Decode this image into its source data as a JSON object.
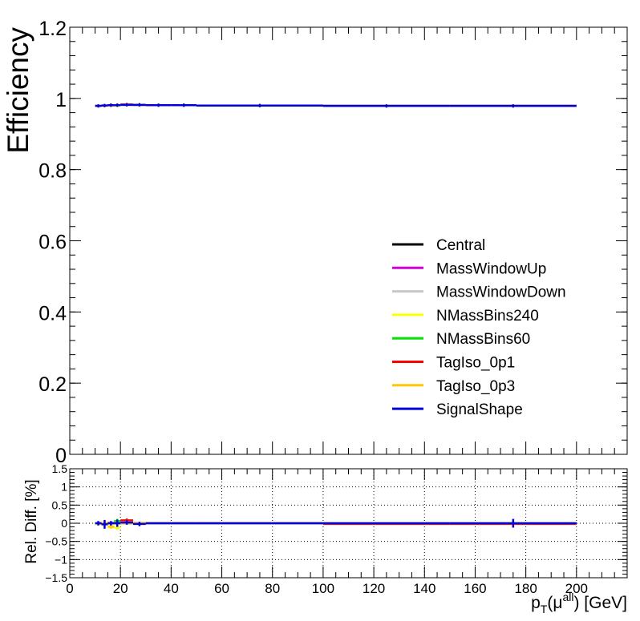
{
  "chart_data": [
    {
      "type": "line",
      "panel": "top",
      "ylabel": "Efficiency",
      "xlabel": "",
      "xlim": [
        0,
        220
      ],
      "ylim": [
        0,
        1.2
      ],
      "yticks": [
        {
          "value": 0,
          "label": "0"
        },
        {
          "value": 0.2,
          "label": "0.2"
        },
        {
          "value": 0.4,
          "label": "0.4"
        },
        {
          "value": 0.6,
          "label": "0.6"
        },
        {
          "value": 0.8,
          "label": "0.8"
        },
        {
          "value": 1,
          "label": "1"
        },
        {
          "value": 1.2,
          "label": "1.2"
        }
      ],
      "legend_position": "center-right",
      "series": [
        {
          "name": "Central",
          "color": "#000000",
          "bins": [
            [
              10,
              12.5,
              0.979
            ],
            [
              12.5,
              15,
              0.98
            ],
            [
              15,
              17.5,
              0.981
            ],
            [
              17.5,
              20,
              0.981
            ],
            [
              20,
              25,
              0.982
            ],
            [
              25,
              30,
              0.982
            ],
            [
              30,
              40,
              0.981
            ],
            [
              40,
              50,
              0.981
            ],
            [
              50,
              100,
              0.98
            ],
            [
              100,
              150,
              0.979
            ],
            [
              150,
              200,
              0.979
            ]
          ]
        },
        {
          "name": "MassWindowUp",
          "color": "#d400d4",
          "bins": [
            [
              10,
              12.5,
              0.979
            ],
            [
              12.5,
              15,
              0.98
            ],
            [
              15,
              17.5,
              0.981
            ],
            [
              17.5,
              20,
              0.981
            ],
            [
              20,
              25,
              0.982
            ],
            [
              25,
              30,
              0.982
            ],
            [
              30,
              40,
              0.981
            ],
            [
              40,
              50,
              0.981
            ],
            [
              50,
              100,
              0.98
            ],
            [
              100,
              150,
              0.979
            ],
            [
              150,
              200,
              0.979
            ]
          ]
        },
        {
          "name": "MassWindowDown",
          "color": "#c8c8c8",
          "bins": [
            [
              10,
              12.5,
              0.979
            ],
            [
              12.5,
              15,
              0.98
            ],
            [
              15,
              17.5,
              0.981
            ],
            [
              17.5,
              20,
              0.981
            ],
            [
              20,
              25,
              0.982
            ],
            [
              25,
              30,
              0.982
            ],
            [
              30,
              40,
              0.981
            ],
            [
              40,
              50,
              0.981
            ],
            [
              50,
              100,
              0.98
            ],
            [
              100,
              150,
              0.979
            ],
            [
              150,
              200,
              0.979
            ]
          ]
        },
        {
          "name": "NMassBins240",
          "color": "#ffff00",
          "bins": [
            [
              10,
              12.5,
              0.979
            ],
            [
              12.5,
              15,
              0.98
            ],
            [
              15,
              17.5,
              0.981
            ],
            [
              17.5,
              20,
              0.98
            ],
            [
              20,
              25,
              0.982
            ],
            [
              25,
              30,
              0.982
            ],
            [
              30,
              40,
              0.981
            ],
            [
              40,
              50,
              0.981
            ],
            [
              50,
              100,
              0.98
            ],
            [
              100,
              150,
              0.979
            ],
            [
              150,
              200,
              0.979
            ]
          ]
        },
        {
          "name": "NMassBins60",
          "color": "#00e600",
          "bins": [
            [
              10,
              12.5,
              0.979
            ],
            [
              12.5,
              15,
              0.98
            ],
            [
              15,
              17.5,
              0.981
            ],
            [
              17.5,
              20,
              0.981
            ],
            [
              20,
              25,
              0.982
            ],
            [
              25,
              30,
              0.982
            ],
            [
              30,
              40,
              0.981
            ],
            [
              40,
              50,
              0.981
            ],
            [
              50,
              100,
              0.98
            ],
            [
              100,
              150,
              0.979
            ],
            [
              150,
              200,
              0.979
            ]
          ]
        },
        {
          "name": "TagIso_0p1",
          "color": "#ff0000",
          "bins": [
            [
              10,
              12.5,
              0.979
            ],
            [
              12.5,
              15,
              0.98
            ],
            [
              15,
              17.5,
              0.981
            ],
            [
              17.5,
              20,
              0.981
            ],
            [
              20,
              25,
              0.983
            ],
            [
              25,
              30,
              0.982
            ],
            [
              30,
              40,
              0.981
            ],
            [
              40,
              50,
              0.981
            ],
            [
              50,
              100,
              0.98
            ],
            [
              100,
              150,
              0.979
            ],
            [
              150,
              200,
              0.979
            ]
          ]
        },
        {
          "name": "TagIso_0p3",
          "color": "#ffc800",
          "bins": [
            [
              10,
              12.5,
              0.979
            ],
            [
              12.5,
              15,
              0.98
            ],
            [
              15,
              17.5,
              0.98
            ],
            [
              17.5,
              20,
              0.981
            ],
            [
              20,
              25,
              0.982
            ],
            [
              25,
              30,
              0.982
            ],
            [
              30,
              40,
              0.981
            ],
            [
              40,
              50,
              0.981
            ],
            [
              50,
              100,
              0.98
            ],
            [
              100,
              150,
              0.979
            ],
            [
              150,
              200,
              0.979
            ]
          ]
        },
        {
          "name": "SignalShape",
          "color": "#0000dd",
          "bins": [
            [
              10,
              12.5,
              0.979
            ],
            [
              12.5,
              15,
              0.98
            ],
            [
              15,
              17.5,
              0.981
            ],
            [
              17.5,
              20,
              0.981
            ],
            [
              20,
              25,
              0.982
            ],
            [
              25,
              30,
              0.982
            ],
            [
              30,
              40,
              0.981
            ],
            [
              40,
              50,
              0.981
            ],
            [
              50,
              100,
              0.98
            ],
            [
              100,
              150,
              0.979
            ],
            [
              150,
              200,
              0.979
            ]
          ]
        }
      ]
    },
    {
      "type": "line",
      "panel": "bottom",
      "ylabel": "Rel. Diff. [%]",
      "xlabel_main": "p",
      "xlabel_sub": "T",
      "xlabel_paren_open": "(μ",
      "xlabel_sup": "all",
      "xlabel_rest": ") [GeV]",
      "xlim": [
        0,
        220
      ],
      "ylim": [
        -1.5,
        1.5
      ],
      "grid": true,
      "xticks": [
        {
          "value": 0,
          "label": "0"
        },
        {
          "value": 20,
          "label": "20"
        },
        {
          "value": 40,
          "label": "40"
        },
        {
          "value": 60,
          "label": "60"
        },
        {
          "value": 80,
          "label": "80"
        },
        {
          "value": 100,
          "label": "100"
        },
        {
          "value": 120,
          "label": "120"
        },
        {
          "value": 140,
          "label": "140"
        },
        {
          "value": 160,
          "label": "160"
        },
        {
          "value": 180,
          "label": "180"
        },
        {
          "value": 200,
          "label": "200"
        }
      ],
      "yticks": [
        {
          "value": -1.5,
          "label": "−1.5"
        },
        {
          "value": -1,
          "label": "−1"
        },
        {
          "value": -0.5,
          "label": "−0.5"
        },
        {
          "value": 0,
          "label": "0"
        },
        {
          "value": 0.5,
          "label": "0.5"
        },
        {
          "value": 1,
          "label": "1"
        },
        {
          "value": 1.5,
          "label": "1.5"
        }
      ],
      "series": [
        {
          "name": "MassWindowUp",
          "color": "#d400d4",
          "bins": [
            [
              10,
              12.5,
              0.0
            ],
            [
              12.5,
              15,
              -0.02
            ],
            [
              15,
              17.5,
              0.01
            ],
            [
              17.5,
              20,
              0.0
            ],
            [
              20,
              25,
              0.0
            ],
            [
              25,
              30,
              0.0
            ],
            [
              30,
              40,
              0.0
            ],
            [
              40,
              50,
              0.0
            ],
            [
              50,
              100,
              0.0
            ],
            [
              100,
              150,
              0.0
            ],
            [
              150,
              200,
              0.0
            ]
          ],
          "errors": [
            0.02,
            0.04,
            0.04,
            0.04,
            0.02,
            0.02,
            0.01,
            0.01,
            0.01,
            0.01,
            0.01
          ]
        },
        {
          "name": "MassWindowDown",
          "color": "#c8c8c8",
          "bins": [
            [
              10,
              12.5,
              0.0
            ],
            [
              12.5,
              15,
              0.0
            ],
            [
              15,
              17.5,
              0.0
            ],
            [
              17.5,
              20,
              0.0
            ],
            [
              20,
              25,
              0.0
            ],
            [
              25,
              30,
              0.0
            ],
            [
              30,
              40,
              0.0
            ],
            [
              40,
              50,
              0.0
            ],
            [
              50,
              100,
              0.0
            ],
            [
              100,
              150,
              0.0
            ],
            [
              150,
              200,
              0.0
            ]
          ],
          "errors": [
            0.02,
            0.03,
            0.03,
            0.03,
            0.02,
            0.02,
            0.01,
            0.01,
            0.01,
            0.01,
            0.01
          ]
        },
        {
          "name": "NMassBins240",
          "color": "#ffff00",
          "bins": [
            [
              10,
              12.5,
              -0.02
            ],
            [
              12.5,
              15,
              0.0
            ],
            [
              15,
              17.5,
              -0.08
            ],
            [
              17.5,
              20,
              -0.12
            ],
            [
              20,
              25,
              0.0
            ],
            [
              25,
              30,
              0.0
            ],
            [
              30,
              40,
              0.0
            ],
            [
              40,
              50,
              0.0
            ],
            [
              50,
              100,
              0.0
            ],
            [
              100,
              150,
              0.0
            ],
            [
              150,
              200,
              0.0
            ]
          ],
          "errors": [
            0.04,
            0.05,
            0.06,
            0.06,
            0.03,
            0.02,
            0.01,
            0.01,
            0.01,
            0.01,
            0.01
          ]
        },
        {
          "name": "NMassBins60",
          "color": "#00e600",
          "bins": [
            [
              10,
              12.5,
              0.0
            ],
            [
              12.5,
              15,
              0.0
            ],
            [
              15,
              17.5,
              0.0
            ],
            [
              17.5,
              20,
              0.06
            ],
            [
              20,
              25,
              0.0
            ],
            [
              25,
              30,
              0.0
            ],
            [
              30,
              40,
              0.0
            ],
            [
              40,
              50,
              0.0
            ],
            [
              50,
              100,
              0.0
            ],
            [
              100,
              150,
              0.0
            ],
            [
              150,
              200,
              0.0
            ]
          ],
          "errors": [
            0.03,
            0.04,
            0.04,
            0.06,
            0.02,
            0.02,
            0.01,
            0.01,
            0.01,
            0.01,
            0.01
          ]
        },
        {
          "name": "TagIso_0p1",
          "color": "#ff0000",
          "bins": [
            [
              10,
              12.5,
              0.0
            ],
            [
              12.5,
              15,
              0.0
            ],
            [
              15,
              17.5,
              0.0
            ],
            [
              17.5,
              20,
              0.0
            ],
            [
              20,
              25,
              0.08
            ],
            [
              25,
              30,
              0.0
            ],
            [
              30,
              40,
              0.0
            ],
            [
              40,
              50,
              0.0
            ],
            [
              50,
              100,
              0.0
            ],
            [
              100,
              150,
              -0.02
            ],
            [
              150,
              200,
              -0.02
            ]
          ],
          "errors": [
            0.03,
            0.04,
            0.04,
            0.04,
            0.05,
            0.02,
            0.01,
            0.01,
            0.01,
            0.02,
            0.02
          ]
        },
        {
          "name": "TagIso_0p3",
          "color": "#ffc800",
          "bins": [
            [
              10,
              12.5,
              0.0
            ],
            [
              12.5,
              15,
              0.0
            ],
            [
              15,
              17.5,
              -0.1
            ],
            [
              17.5,
              20,
              0.0
            ],
            [
              20,
              25,
              0.0
            ],
            [
              25,
              30,
              0.0
            ],
            [
              30,
              40,
              0.0
            ],
            [
              40,
              50,
              0.0
            ],
            [
              50,
              100,
              0.0
            ],
            [
              100,
              150,
              0.0
            ],
            [
              150,
              200,
              0.0
            ]
          ],
          "errors": [
            0.03,
            0.04,
            0.05,
            0.04,
            0.02,
            0.02,
            0.01,
            0.01,
            0.01,
            0.01,
            0.01
          ]
        },
        {
          "name": "SignalShape",
          "color": "#0000dd",
          "bins": [
            [
              10,
              12.5,
              0.0
            ],
            [
              12.5,
              15,
              -0.03
            ],
            [
              15,
              17.5,
              0.0
            ],
            [
              17.5,
              20,
              0.0
            ],
            [
              20,
              25,
              0.02
            ],
            [
              25,
              30,
              -0.02
            ],
            [
              30,
              40,
              0.0
            ],
            [
              40,
              50,
              0.0
            ],
            [
              50,
              100,
              0.0
            ],
            [
              100,
              150,
              0.0
            ],
            [
              150,
              200,
              0.0
            ]
          ],
          "errors": [
            0.06,
            0.12,
            0.06,
            0.1,
            0.06,
            0.06,
            0.02,
            0.02,
            0.02,
            0.02,
            0.12
          ]
        }
      ]
    }
  ]
}
